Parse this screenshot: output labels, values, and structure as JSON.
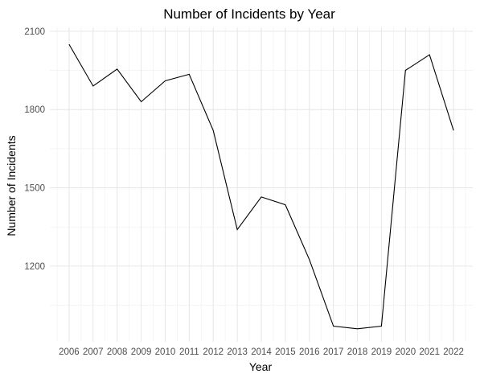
{
  "chart_data": {
    "type": "line",
    "title": "Number of Incidents by Year",
    "xlabel": "Year",
    "ylabel": "Number of Incidents",
    "x": [
      2006,
      2007,
      2008,
      2009,
      2010,
      2011,
      2012,
      2013,
      2014,
      2015,
      2016,
      2017,
      2018,
      2019,
      2020,
      2021,
      2022
    ],
    "series": [
      {
        "name": "",
        "values": [
          2050,
          1890,
          1955,
          1830,
          1910,
          1935,
          1720,
          1340,
          1465,
          1435,
          1225,
          970,
          960,
          970,
          1950,
          2010,
          1720
        ]
      }
    ],
    "ylim": [
      910,
      2115
    ],
    "yticks": [
      1200,
      1500,
      1800,
      2100
    ],
    "grid": true,
    "legend": "none",
    "colors": {
      "line": "#000000",
      "grid": "#e6e6e6",
      "background": "#ffffff"
    }
  }
}
